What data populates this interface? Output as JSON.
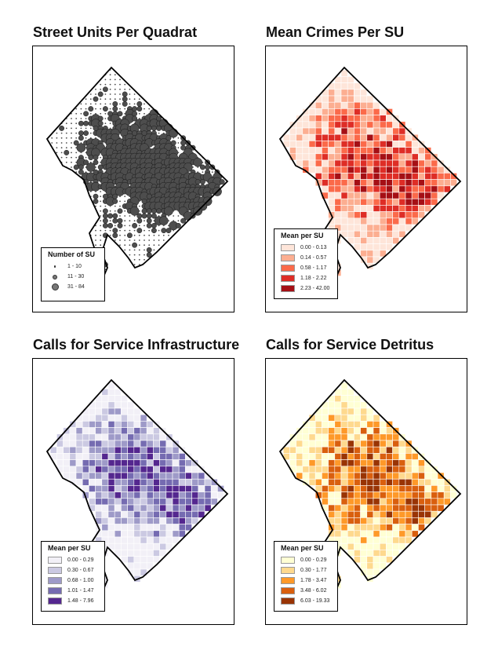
{
  "panels": [
    {
      "id": "street-units",
      "title": "Street Units Per Quadrat",
      "style": "points",
      "legend": {
        "title": "Number of SU",
        "items": [
          {
            "label": "1 - 10",
            "size": "small"
          },
          {
            "label": "11 - 30",
            "size": "medium"
          },
          {
            "label": "31 - 84",
            "size": "large"
          }
        ]
      },
      "colors": {
        "fill": "#4d4d4d",
        "stroke": "#1a1a1a"
      }
    },
    {
      "id": "mean-crimes",
      "title": "Mean Crimes Per SU",
      "style": "choropleth",
      "legend": {
        "title": "Mean per SU",
        "items": [
          {
            "label": "0.00 - 0.13",
            "color": "#fee5d9"
          },
          {
            "label": "0.14 - 0.57",
            "color": "#fcae91"
          },
          {
            "label": "0.58 - 1.17",
            "color": "#fb6a4a"
          },
          {
            "label": "1.18 - 2.22",
            "color": "#de2d26"
          },
          {
            "label": "2.23 - 42.00",
            "color": "#a50f15"
          }
        ]
      }
    },
    {
      "id": "cfs-infrastructure",
      "title": "Calls for Service Infrastructure",
      "style": "choropleth",
      "legend": {
        "title": "Mean per SU",
        "items": [
          {
            "label": "0.00 - 0.29",
            "color": "#f2f0f7"
          },
          {
            "label": "0.30 - 0.67",
            "color": "#cbc9e2"
          },
          {
            "label": "0.68 - 1.00",
            "color": "#9e9ac8"
          },
          {
            "label": "1.01 - 1.47",
            "color": "#756bb1"
          },
          {
            "label": "1.48 - 7.96",
            "color": "#54278f"
          }
        ]
      }
    },
    {
      "id": "cfs-detritus",
      "title": "Calls for Service Detritus",
      "style": "choropleth",
      "legend": {
        "title": "Mean per SU",
        "items": [
          {
            "label": "0.00 - 0.29",
            "color": "#ffffd4"
          },
          {
            "label": "0.30 - 1.77",
            "color": "#fed98e"
          },
          {
            "label": "1.78 - 3.47",
            "color": "#fe9929"
          },
          {
            "label": "3.48 - 6.02",
            "color": "#d95f0e"
          },
          {
            "label": "6.03 - 19.33",
            "color": "#993404"
          }
        ]
      }
    }
  ]
}
